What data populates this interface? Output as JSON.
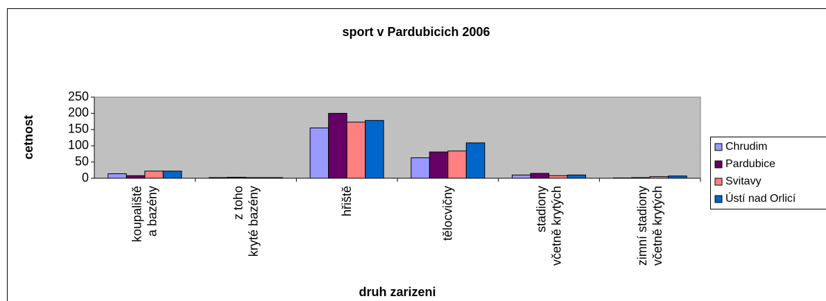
{
  "chart_data": {
    "type": "bar",
    "title": "sport v Pardubicich 2006",
    "y_label": "cetnost",
    "x_label": "druh zarizeni",
    "categories": [
      [
        "koupaliště",
        "a bazény"
      ],
      [
        "z toho",
        "kryté bazény"
      ],
      [
        "hřiště"
      ],
      [
        "tělocvičny"
      ],
      [
        "stadiony",
        "včetně krytých"
      ],
      [
        "zimní stadiony",
        "včetně krytých"
      ]
    ],
    "series": [
      {
        "name": "Chrudim",
        "color": "#9999ff",
        "values": [
          14,
          2,
          155,
          63,
          10,
          1
        ]
      },
      {
        "name": "Pardubice",
        "color": "#660066",
        "values": [
          8,
          3,
          200,
          81,
          15,
          2
        ]
      },
      {
        "name": "Svitavy",
        "color": "#ff8080",
        "values": [
          22,
          2,
          173,
          84,
          8,
          5
        ]
      },
      {
        "name": "Ústí nad Orlicí",
        "color": "#0066cc",
        "values": [
          22,
          2,
          178,
          109,
          10,
          7
        ]
      }
    ],
    "ylim": [
      0,
      250
    ],
    "yticks": [
      0,
      50,
      100,
      150,
      200,
      250
    ],
    "plot_background": "#c0c0c0",
    "legend": "right"
  }
}
